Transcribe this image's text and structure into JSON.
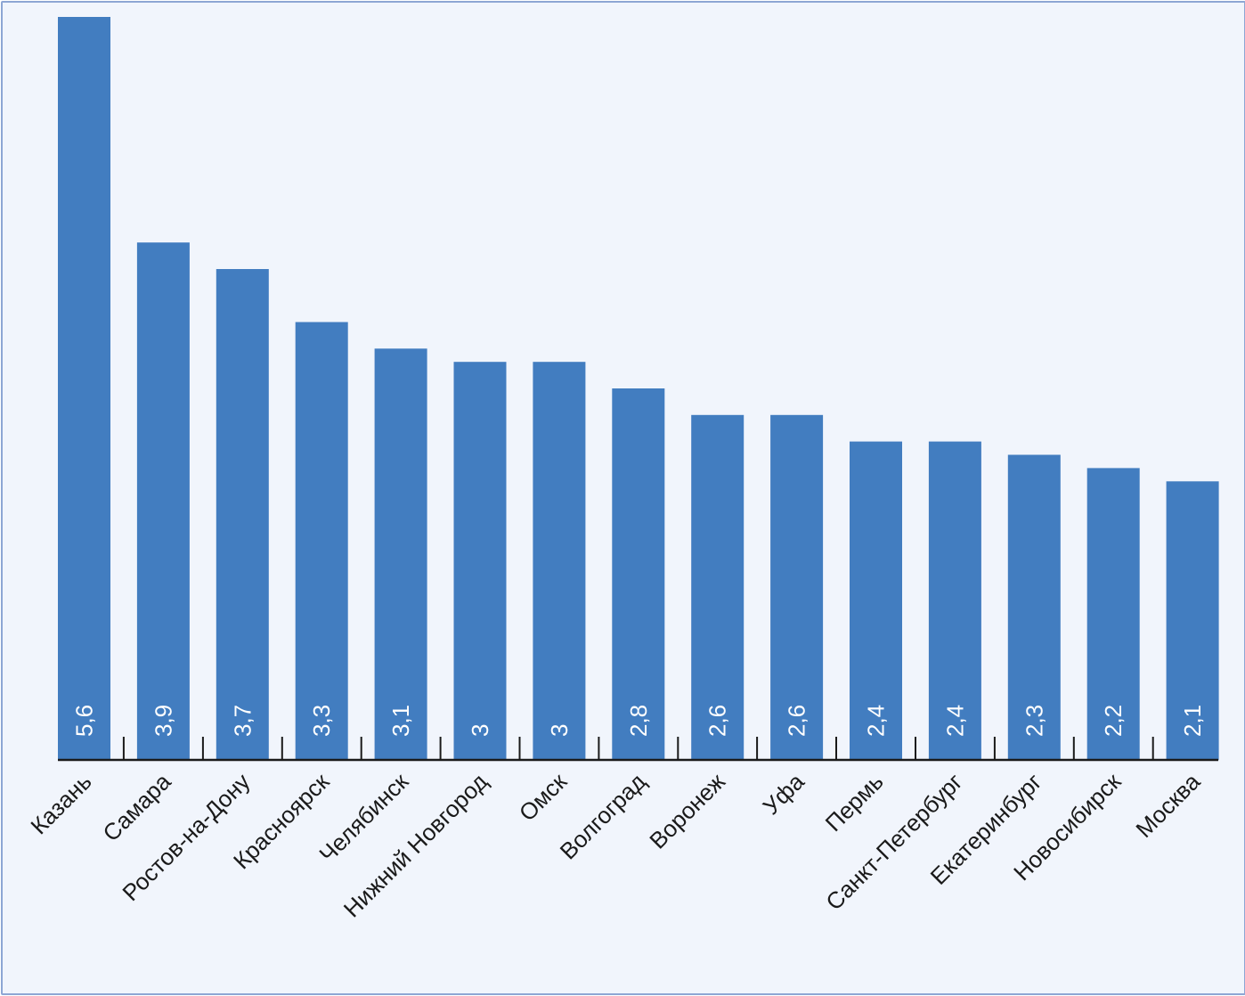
{
  "chart_data": {
    "type": "bar",
    "title": "",
    "xlabel": "",
    "ylabel": "",
    "categories": [
      "Казань",
      "Самара",
      "Ростов-на-Дону",
      "Красноярск",
      "Челябинск",
      "Нижний Новгород",
      "Омск",
      "Волгоград",
      "Воронеж",
      "Уфа",
      "Пермь",
      "Санкт-Петербург",
      "Екатеринбург",
      "Новосибирск",
      "Москва"
    ],
    "values": [
      5.6,
      3.9,
      3.7,
      3.3,
      3.1,
      3,
      3,
      2.8,
      2.6,
      2.6,
      2.4,
      2.4,
      2.3,
      2.2,
      2.1
    ],
    "value_labels": [
      "5,6",
      "3,9",
      "3,7",
      "3,3",
      "3,1",
      "3",
      "3",
      "2,8",
      "2,6",
      "2,6",
      "2,4",
      "2,4",
      "2,3",
      "2,2",
      "2,1"
    ],
    "ylim": [
      0,
      5.6
    ],
    "grid": false,
    "bar_color": "#427dc0",
    "axis_color": "#1a1a1a",
    "background_color": "#f1f5fc",
    "border_color": "#8da6d4"
  }
}
